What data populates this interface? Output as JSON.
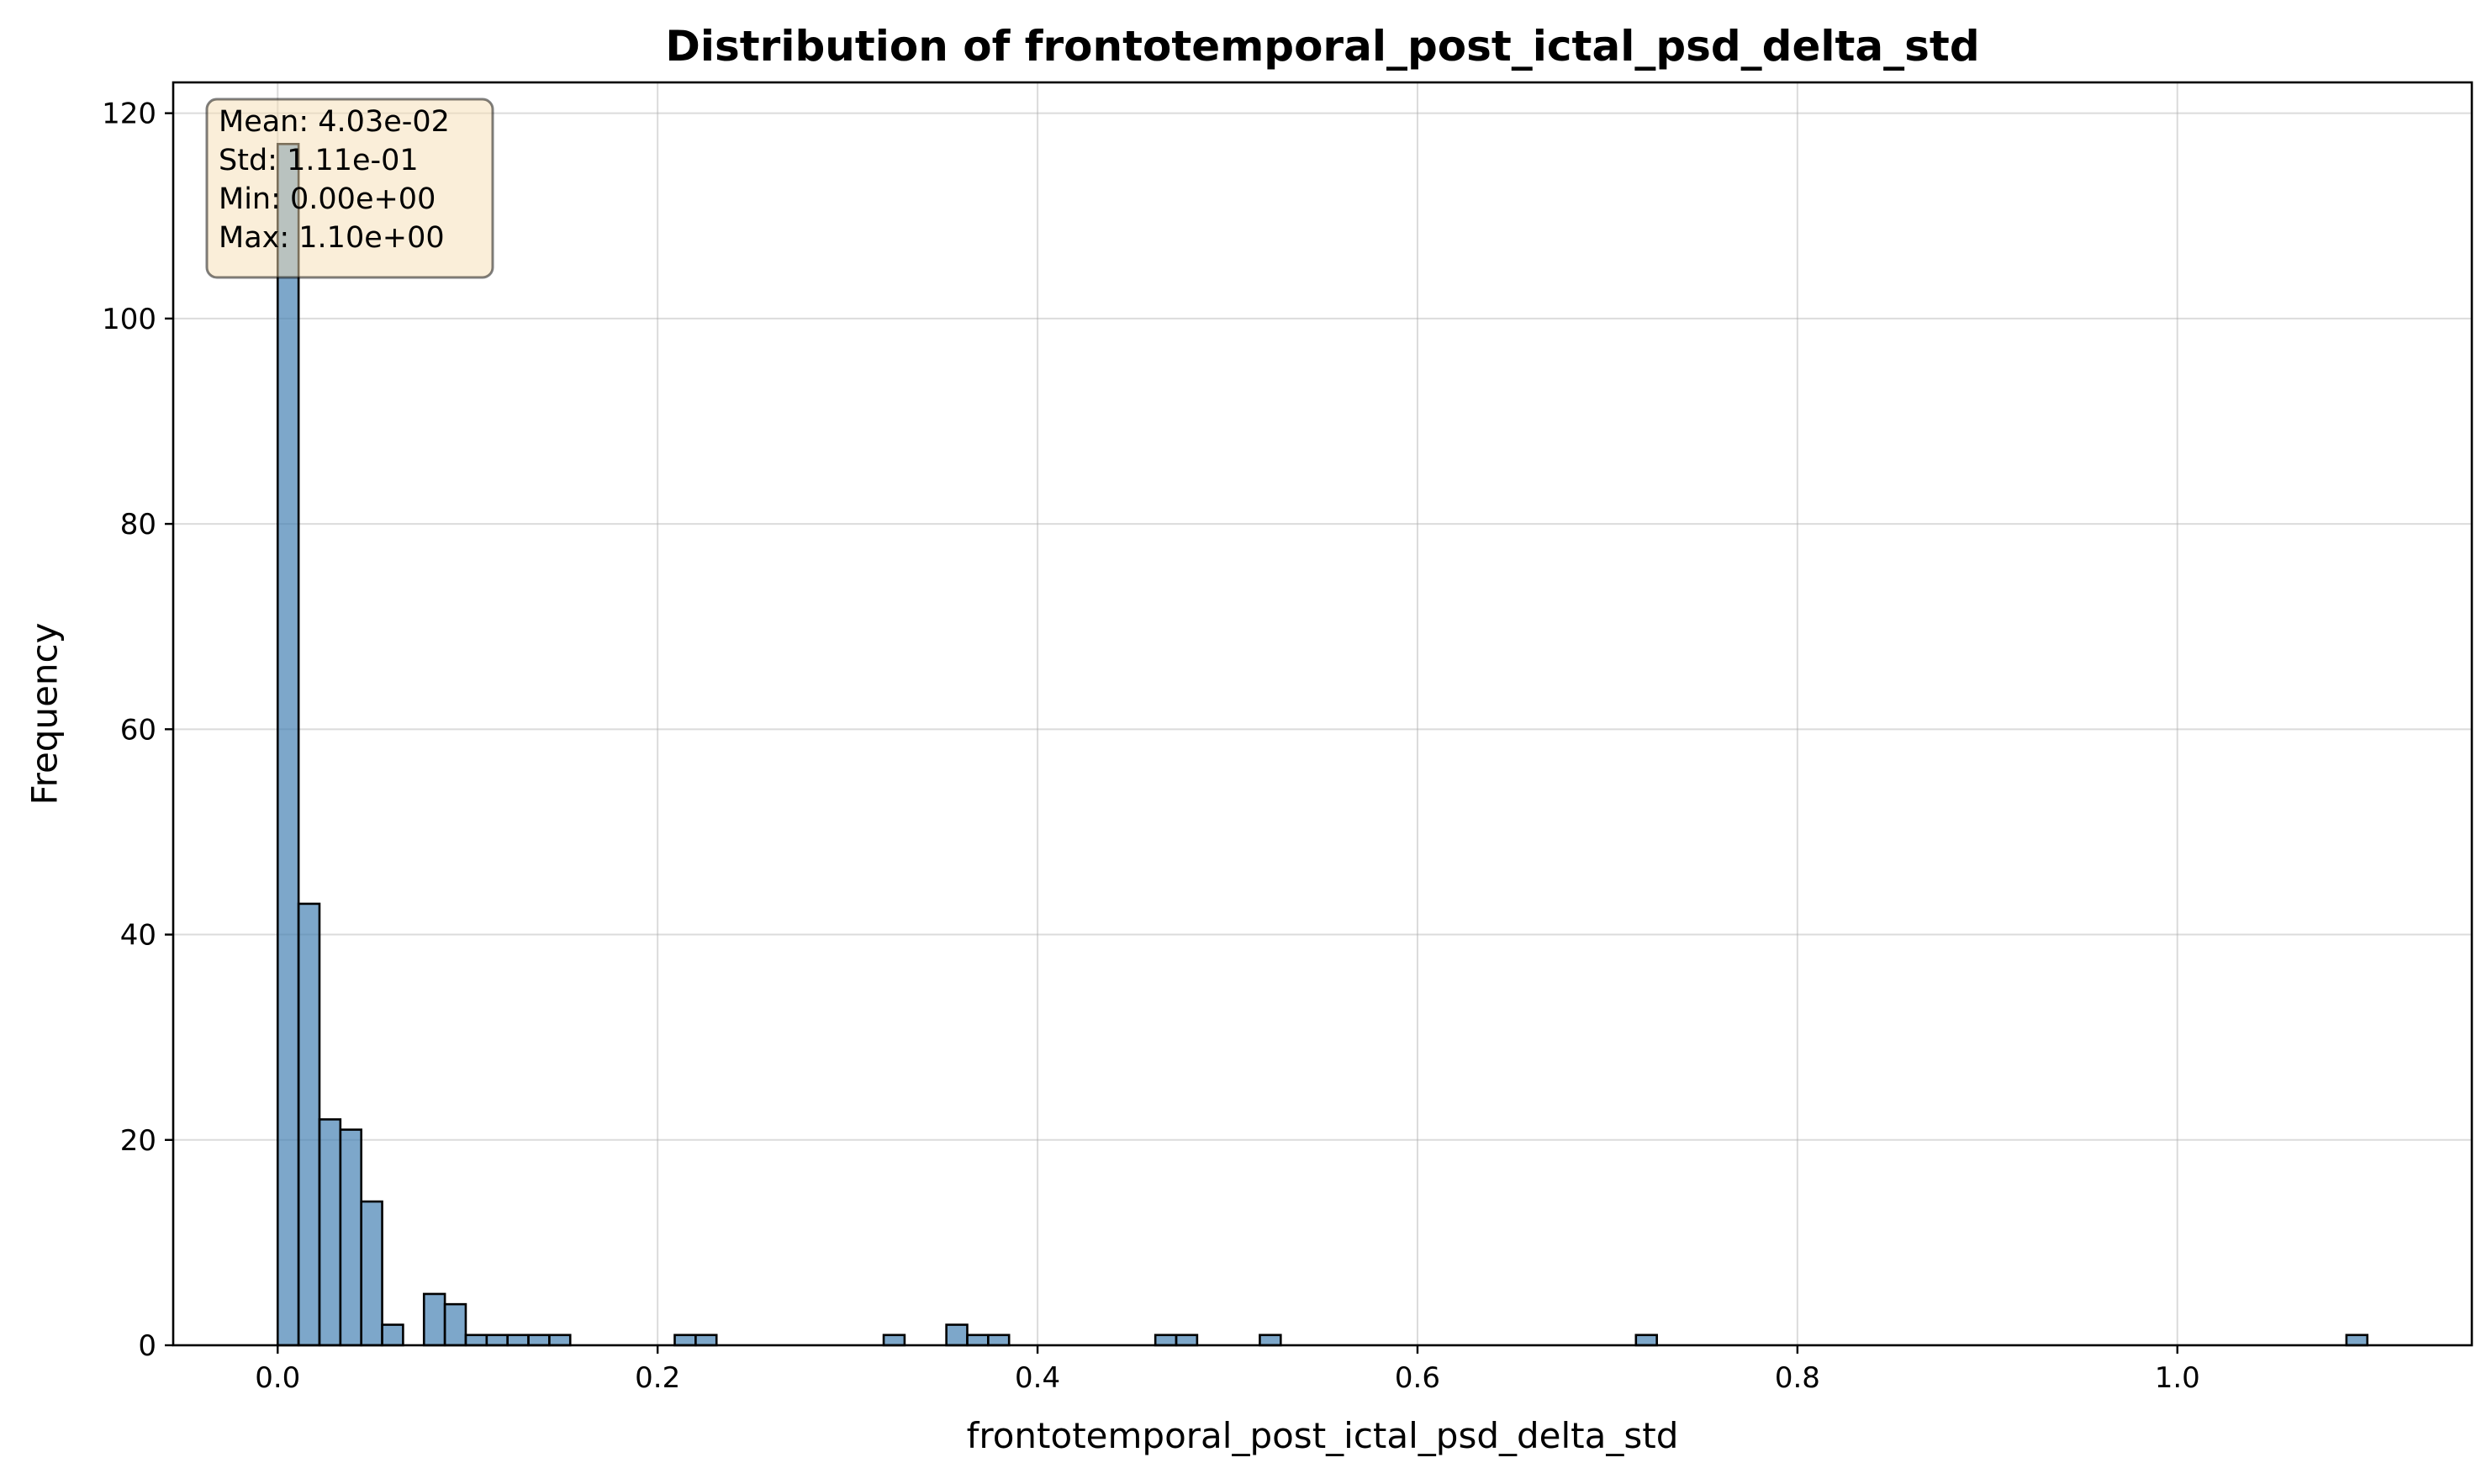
{
  "chart_data": {
    "type": "bar",
    "title": "Distribution of frontotemporal_post_ictal_psd_delta_std",
    "xlabel": "frontotemporal_post_ictal_psd_delta_std",
    "ylabel": "Frequency",
    "xlim": [
      -0.055,
      1.155
    ],
    "ylim": [
      0,
      123
    ],
    "xticks": [
      0.0,
      0.2,
      0.4,
      0.6,
      0.8,
      1.0
    ],
    "xtick_labels": [
      "0.0",
      "0.2",
      "0.4",
      "0.6",
      "0.8",
      "1.0"
    ],
    "yticks": [
      0,
      20,
      40,
      60,
      80,
      100,
      120
    ],
    "ytick_labels": [
      "0",
      "20",
      "40",
      "60",
      "80",
      "100",
      "120"
    ],
    "grid": true,
    "bin_width": 0.011,
    "bin_start": 0.0,
    "counts": [
      117,
      43,
      22,
      21,
      14,
      2,
      0,
      5,
      4,
      1,
      1,
      1,
      1,
      1,
      0,
      0,
      0,
      0,
      0,
      1,
      1,
      0,
      0,
      0,
      0,
      0,
      0,
      0,
      0,
      1,
      0,
      0,
      2,
      1,
      1,
      0,
      0,
      0,
      0,
      0,
      0,
      0,
      1,
      1,
      0,
      0,
      0,
      1,
      0,
      0,
      0,
      0,
      0,
      0,
      0,
      0,
      0,
      0,
      0,
      0,
      0,
      0,
      0,
      0,
      0,
      1,
      0,
      0,
      0,
      0,
      0,
      0,
      0,
      0,
      0,
      0,
      0,
      0,
      0,
      0,
      0,
      0,
      0,
      0,
      0,
      0,
      0,
      0,
      0,
      0,
      0,
      0,
      0,
      0,
      0,
      0,
      0,
      0,
      0,
      1
    ],
    "bar_color": "#4682b4",
    "stats_box": {
      "lines": [
        "Mean: 4.03e-02",
        "Std: 1.11e-01",
        "Min: 0.00e+00",
        "Max: 1.10e+00"
      ],
      "background": "#f5deb3",
      "placement": "top-left"
    }
  }
}
